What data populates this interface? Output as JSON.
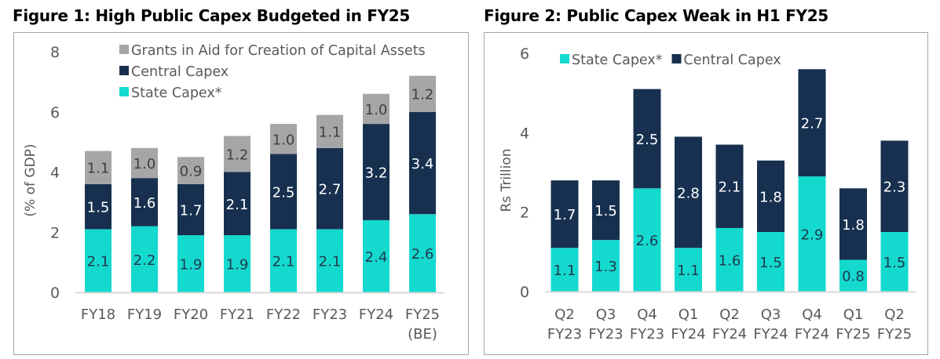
{
  "colors": {
    "state": "#14d9cf",
    "central": "#17304f",
    "grants": "#a6a6a6",
    "axis_text": "#595959",
    "label_dark": "#1f3b4d",
    "label_light": "#ffffff",
    "grants_label": "#404040"
  },
  "chart_data": [
    {
      "type": "bar",
      "stacked": true,
      "title": "Figure 1:  High Public Capex Budgeted in FY25",
      "xlabel": "",
      "ylabel": "(% of GDP)",
      "ylim": [
        0,
        8
      ],
      "yticks": [
        "0",
        "2",
        "4",
        "6",
        "8"
      ],
      "grid": false,
      "legend_position": "top",
      "legend": [
        "Grants in Aid for Creation of Capital Assets",
        "Central Capex",
        "State Capex*"
      ],
      "categories": [
        "FY18",
        "FY19",
        "FY20",
        "FY21",
        "FY22",
        "FY23",
        "FY24",
        "FY25"
      ],
      "category_sublabels": [
        "",
        "",
        "",
        "",
        "",
        "",
        "",
        "(BE)"
      ],
      "series": [
        {
          "name": "State Capex*",
          "key": "state",
          "values": [
            2.1,
            2.2,
            1.9,
            1.9,
            2.1,
            2.1,
            2.4,
            2.6
          ]
        },
        {
          "name": "Central Capex",
          "key": "central",
          "values": [
            1.5,
            1.6,
            1.7,
            2.1,
            2.5,
            2.7,
            3.2,
            3.4
          ]
        },
        {
          "name": "Grants in Aid for Creation of Capital Assets",
          "key": "grants",
          "values": [
            1.1,
            1.0,
            0.9,
            1.2,
            1.0,
            1.1,
            1.0,
            1.2
          ]
        }
      ],
      "data_labels": {
        "state": [
          "2.1",
          "2.2",
          "1.9",
          "1.9",
          "2.1",
          "2.1",
          "2.4",
          "2.6"
        ],
        "central": [
          "1.5",
          "1.6",
          "1.7",
          "2.1",
          "2.5",
          "2.7",
          "3.2",
          "3.4"
        ],
        "grants": [
          "1.1",
          "1.0",
          "0.9",
          "1.2",
          "1.0",
          "1.1",
          "1.0",
          "1.2"
        ]
      }
    },
    {
      "type": "bar",
      "stacked": true,
      "title": "Figure 2:  Public Capex Weak in H1 FY25",
      "xlabel": "",
      "ylabel": "Rs Trillion",
      "ylim": [
        0,
        6
      ],
      "yticks": [
        "0",
        "2",
        "4",
        "6"
      ],
      "grid": false,
      "legend_position": "top",
      "legend": [
        "State Capex*",
        "Central Capex"
      ],
      "categories": [
        "Q2",
        "Q3",
        "Q4",
        "Q1",
        "Q2",
        "Q3",
        "Q4",
        "Q1",
        "Q2"
      ],
      "category_sublabels": [
        "FY23",
        "FY23",
        "FY23",
        "FY24",
        "FY24",
        "FY24",
        "FY24",
        "FY25",
        "FY25"
      ],
      "series": [
        {
          "name": "State Capex*",
          "key": "state",
          "values": [
            1.1,
            1.3,
            2.6,
            1.1,
            1.6,
            1.5,
            2.9,
            0.8,
            1.5
          ]
        },
        {
          "name": "Central Capex",
          "key": "central",
          "values": [
            1.7,
            1.5,
            2.5,
            2.8,
            2.1,
            1.8,
            2.7,
            1.8,
            2.3
          ]
        }
      ],
      "data_labels": {
        "state": [
          "1.1",
          "1.3",
          "2.6",
          "1.1",
          "1.6",
          "1.5",
          "2.9",
          "0.8",
          "1.5"
        ],
        "central": [
          "1.7",
          "1.5",
          "2.5",
          "2.8",
          "2.1",
          "1.8",
          "2.7",
          "1.8",
          "2.3"
        ]
      }
    }
  ]
}
